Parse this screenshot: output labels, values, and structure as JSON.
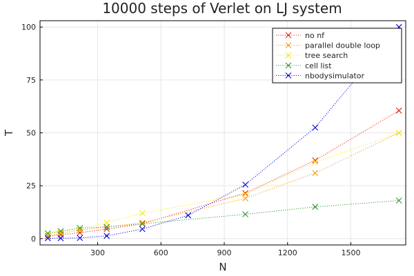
{
  "chart_data": {
    "type": "scatter",
    "title": "10000 steps of Verlet on LJ system",
    "xlabel": "N",
    "ylabel": "T",
    "xlim": [
      27,
      1760
    ],
    "ylim": [
      -3,
      103
    ],
    "x_ticks": [
      300,
      600,
      900,
      1200,
      1500
    ],
    "y_ticks": [
      0,
      25,
      50,
      75,
      100
    ],
    "grid": true,
    "legend_position": "top-right",
    "marker": "x",
    "line_style": "dotted",
    "series": [
      {
        "name": "no nf",
        "color": "#ee2200",
        "points": [
          [
            64,
            1.2
          ],
          [
            125,
            1.8
          ],
          [
            216,
            2.8
          ],
          [
            343,
            4.5
          ],
          [
            512,
            7.0
          ],
          [
            1000,
            21.5
          ],
          [
            1331,
            37.0
          ],
          [
            1728,
            60.5
          ]
        ]
      },
      {
        "name": "parallel double loop",
        "color": "#ff9a00",
        "points": [
          [
            64,
            1.0
          ],
          [
            125,
            2.5
          ],
          [
            216,
            4.0
          ],
          [
            343,
            5.5
          ],
          [
            512,
            7.5
          ],
          [
            1000,
            19.0
          ],
          [
            1331,
            31.0
          ],
          [
            1728,
            50.0
          ]
        ]
      },
      {
        "name": "tree search",
        "color": "#ffe800",
        "points": [
          [
            64,
            2.0
          ],
          [
            125,
            3.2
          ],
          [
            216,
            4.8
          ],
          [
            343,
            7.5
          ],
          [
            512,
            12.0
          ],
          [
            1000,
            21.0
          ],
          [
            1331,
            36.0
          ],
          [
            1728,
            50.0
          ]
        ]
      },
      {
        "name": "cell list",
        "color": "#339933",
        "points": [
          [
            64,
            2.5
          ],
          [
            125,
            3.5
          ],
          [
            216,
            5.0
          ],
          [
            343,
            5.5
          ],
          [
            512,
            7.0
          ],
          [
            1000,
            11.5
          ],
          [
            1331,
            15.0
          ],
          [
            1728,
            18.0
          ]
        ]
      },
      {
        "name": "nbodysimulator",
        "color": "#0000ee",
        "points": [
          [
            64,
            0.2
          ],
          [
            125,
            0.2
          ],
          [
            216,
            0.3
          ],
          [
            343,
            1.3
          ],
          [
            512,
            4.5
          ],
          [
            729,
            11.0
          ],
          [
            1000,
            25.5
          ],
          [
            1331,
            52.5
          ],
          [
            1728,
            100.0
          ]
        ]
      }
    ]
  }
}
